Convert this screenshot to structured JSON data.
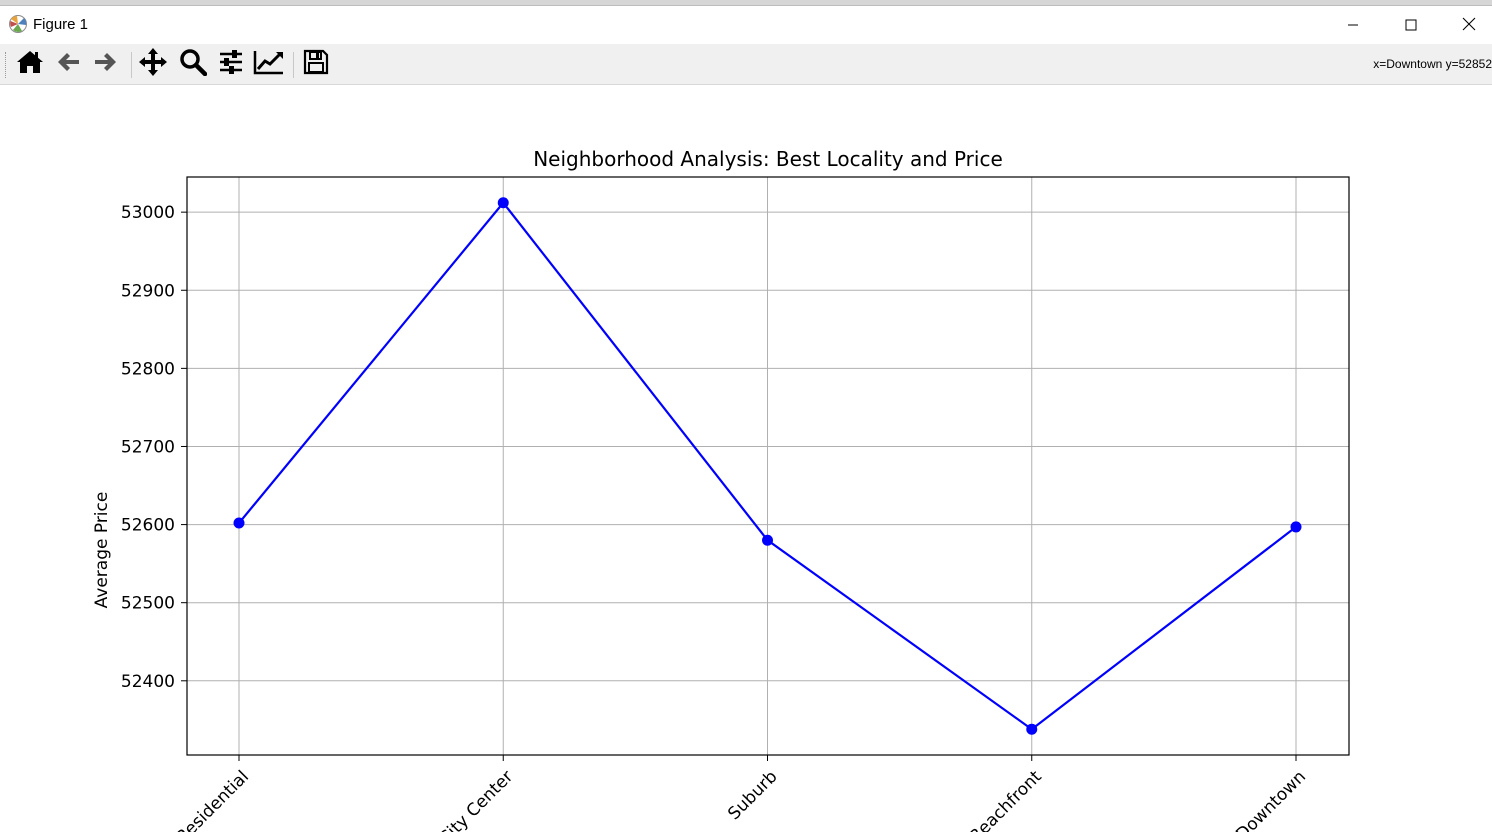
{
  "window": {
    "title": "Figure 1",
    "icon": "matplotlib-icon",
    "controls": [
      "minimize-icon",
      "maximize-icon",
      "close-icon"
    ]
  },
  "toolbar": {
    "buttons": [
      {
        "name": "home-icon",
        "tooltip": "Reset original view"
      },
      {
        "name": "back-arrow-icon",
        "tooltip": "Back to previous view"
      },
      {
        "name": "forward-arrow-icon",
        "tooltip": "Forward to next view"
      },
      {
        "name": "pan-icon",
        "tooltip": "Pan axes"
      },
      {
        "name": "zoom-icon",
        "tooltip": "Zoom to rectangle"
      },
      {
        "name": "subplots-icon",
        "tooltip": "Configure subplots"
      },
      {
        "name": "edit-curves-icon",
        "tooltip": "Edit axis, curve and image parameters"
      },
      {
        "name": "save-icon",
        "tooltip": "Save the figure"
      }
    ],
    "coordinates": "x=Downtown y=52852"
  },
  "chart_data": {
    "type": "line",
    "title": "Neighborhood Analysis: Best Locality and Price",
    "xlabel": "",
    "ylabel": "Average Price",
    "categories": [
      "Residential",
      "City Center",
      "Suburb",
      "Beachfront",
      "Downtown"
    ],
    "series": [
      {
        "values": [
          52602,
          53012,
          52580,
          52338,
          52597
        ],
        "color": "#0000ff",
        "marker": "circle"
      }
    ],
    "ylim": [
      52305,
      53045
    ],
    "yticks": [
      52400,
      52500,
      52600,
      52700,
      52800,
      52900,
      53000
    ],
    "grid": true,
    "xtick_rotation": 45
  }
}
